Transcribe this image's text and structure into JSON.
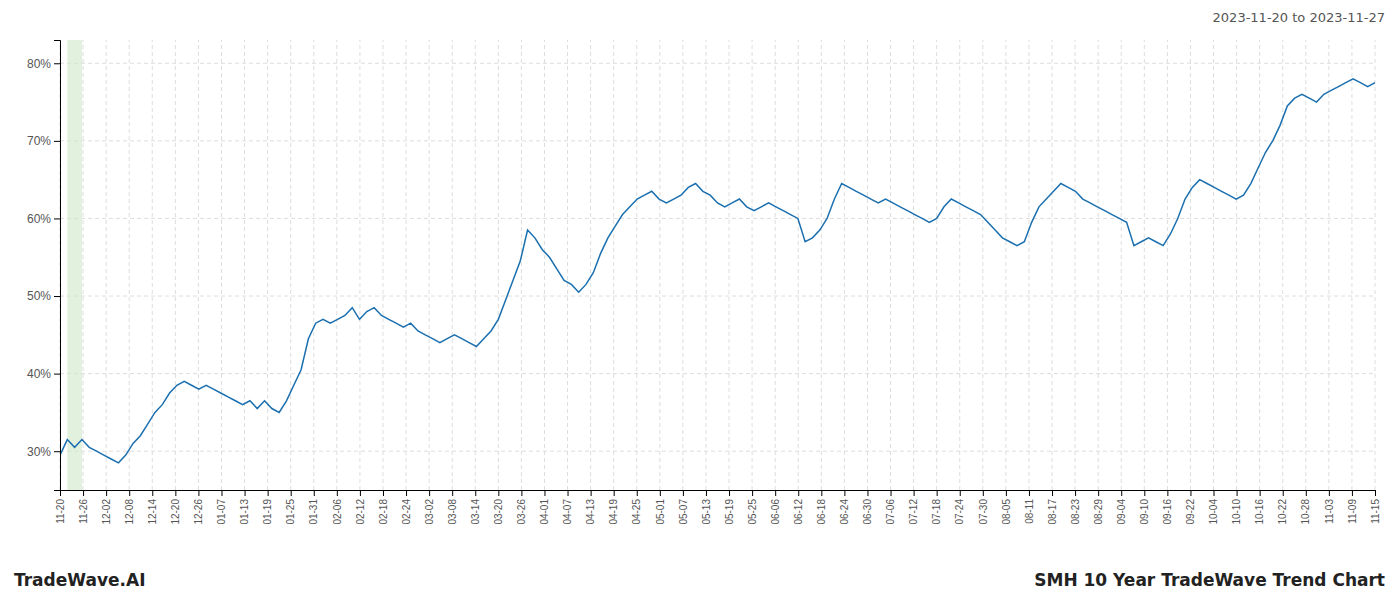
{
  "chart_data": {
    "type": "line",
    "title": "SMH 10 Year TradeWave Trend Chart",
    "subtitle": "2023-11-20 to 2023-11-27",
    "annotation": "TradeWave.AI",
    "color": "#1a6faf",
    "grid": true,
    "xlim": [
      0,
      180
    ],
    "xticks": [
      {
        "value": 0,
        "label": "11-20"
      },
      {
        "value": 3.1579,
        "label": "11-26"
      },
      {
        "value": 6.3158,
        "label": "12-02"
      },
      {
        "value": 9.4737,
        "label": "12-08"
      },
      {
        "value": 12.6316,
        "label": "12-14"
      },
      {
        "value": 15.7895,
        "label": "12-20"
      },
      {
        "value": 18.9474,
        "label": "12-26"
      },
      {
        "value": 22.1053,
        "label": "01-07"
      },
      {
        "value": 25.2632,
        "label": "01-13"
      },
      {
        "value": 28.4211,
        "label": "01-19"
      },
      {
        "value": 31.5789,
        "label": "01-25"
      },
      {
        "value": 34.7368,
        "label": "01-31"
      },
      {
        "value": 37.8947,
        "label": "02-06"
      },
      {
        "value": 41.0526,
        "label": "02-12"
      },
      {
        "value": 44.2105,
        "label": "02-18"
      },
      {
        "value": 47.3684,
        "label": "02-24"
      },
      {
        "value": 50.5263,
        "label": "03-02"
      },
      {
        "value": 53.6842,
        "label": "03-08"
      },
      {
        "value": 56.8421,
        "label": "03-14"
      },
      {
        "value": 60,
        "label": "03-20"
      },
      {
        "value": 63.1579,
        "label": "03-26"
      },
      {
        "value": 66.3158,
        "label": "04-01"
      },
      {
        "value": 69.4737,
        "label": "04-07"
      },
      {
        "value": 72.6316,
        "label": "04-13"
      },
      {
        "value": 75.7895,
        "label": "04-19"
      },
      {
        "value": 78.9474,
        "label": "04-25"
      },
      {
        "value": 82.1053,
        "label": "05-01"
      },
      {
        "value": 85.2632,
        "label": "05-07"
      },
      {
        "value": 88.4211,
        "label": "05-13"
      },
      {
        "value": 91.5789,
        "label": "05-19"
      },
      {
        "value": 94.7368,
        "label": "05-25"
      },
      {
        "value": 97.8947,
        "label": "06-06"
      },
      {
        "value": 101.0526,
        "label": "06-12"
      },
      {
        "value": 104.2105,
        "label": "06-18"
      },
      {
        "value": 107.3684,
        "label": "06-24"
      },
      {
        "value": 110.5263,
        "label": "06-30"
      },
      {
        "value": 113.6842,
        "label": "07-06"
      },
      {
        "value": 116.8421,
        "label": "07-12"
      },
      {
        "value": 120,
        "label": "07-18"
      },
      {
        "value": 123.1579,
        "label": "07-24"
      },
      {
        "value": 126.3158,
        "label": "07-30"
      },
      {
        "value": 129.4737,
        "label": "08-05"
      },
      {
        "value": 132.6316,
        "label": "08-11"
      },
      {
        "value": 135.7895,
        "label": "08-17"
      },
      {
        "value": 138.9474,
        "label": "08-23"
      },
      {
        "value": 142.1053,
        "label": "08-29"
      },
      {
        "value": 145.2632,
        "label": "09-04"
      },
      {
        "value": 148.4211,
        "label": "09-10"
      },
      {
        "value": 151.5789,
        "label": "09-16"
      },
      {
        "value": 154.7368,
        "label": "09-22"
      },
      {
        "value": 157.8947,
        "label": "10-04"
      },
      {
        "value": 161.0526,
        "label": "10-10"
      },
      {
        "value": 164.2105,
        "label": "10-16"
      },
      {
        "value": 167.3684,
        "label": "10-22"
      },
      {
        "value": 170.5263,
        "label": "10-28"
      },
      {
        "value": 173.6842,
        "label": "11-03"
      },
      {
        "value": 176.8421,
        "label": "11-09"
      },
      {
        "value": 180,
        "label": "11-15"
      }
    ],
    "ylim": [
      25,
      83
    ],
    "yticks": [
      {
        "value": 30,
        "label": "30%"
      },
      {
        "value": 40,
        "label": "40%"
      },
      {
        "value": 50,
        "label": "50%"
      },
      {
        "value": 60,
        "label": "60%"
      },
      {
        "value": 70,
        "label": "70%"
      },
      {
        "value": 80,
        "label": "80%"
      }
    ],
    "bands": [
      {
        "x": [
          1,
          3
        ],
        "color": "#cde8c8"
      }
    ],
    "values": [
      29.5,
      31.5,
      30.5,
      31.5,
      30.5,
      30.0,
      29.5,
      29.0,
      28.5,
      29.5,
      31.0,
      32.0,
      33.5,
      35.0,
      36.0,
      37.5,
      38.5,
      39.0,
      38.5,
      38.0,
      38.5,
      38.0,
      37.5,
      37.0,
      36.5,
      36.0,
      36.5,
      35.5,
      36.5,
      35.5,
      35.0,
      36.5,
      38.5,
      40.5,
      44.5,
      46.5,
      47.0,
      46.5,
      47.0,
      47.5,
      48.5,
      47.0,
      48.0,
      48.5,
      47.5,
      47.0,
      46.5,
      46.0,
      46.5,
      45.5,
      45.0,
      44.5,
      44.0,
      44.5,
      45.0,
      44.5,
      44.0,
      43.5,
      44.5,
      45.5,
      47.0,
      49.5,
      52.0,
      54.5,
      58.5,
      57.5,
      56.0,
      55.0,
      53.5,
      52.0,
      51.5,
      50.5,
      51.5,
      53.0,
      55.5,
      57.5,
      59.0,
      60.5,
      61.5,
      62.5,
      63.0,
      63.5,
      62.5,
      62.0,
      62.5,
      63.0,
      64.0,
      64.5,
      63.5,
      63.0,
      62.0,
      61.5,
      62.0,
      62.5,
      61.5,
      61.0,
      61.5,
      62.0,
      61.5,
      61.0,
      60.5,
      60.0,
      57.0,
      57.5,
      58.5,
      60.0,
      62.5,
      64.5,
      64.0,
      63.5,
      63.0,
      62.5,
      62.0,
      62.5,
      62.0,
      61.5,
      61.0,
      60.5,
      60.0,
      59.5,
      60.0,
      61.5,
      62.5,
      62.0,
      61.5,
      61.0,
      60.5,
      59.5,
      58.5,
      57.5,
      57.0,
      56.5,
      57.0,
      59.5,
      61.5,
      62.5,
      63.5,
      64.5,
      64.0,
      63.5,
      62.5,
      62.0,
      61.5,
      61.0,
      60.5,
      60.0,
      59.5,
      56.5,
      57.0,
      57.5,
      57.0,
      56.5,
      58.0,
      60.0,
      62.5,
      64.0,
      65.0,
      64.5,
      64.0,
      63.5,
      63.0,
      62.5,
      63.0,
      64.5,
      66.5,
      68.5,
      70.0,
      72.0,
      74.5,
      75.5,
      76.0,
      75.5,
      75.0,
      76.0,
      76.5,
      77.0,
      77.5,
      78.0,
      77.5,
      77.0,
      77.5
    ]
  }
}
